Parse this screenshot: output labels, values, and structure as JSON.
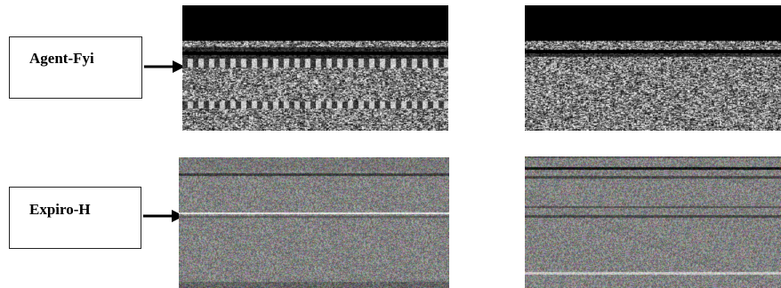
{
  "labels": {
    "top": "Agent-Fyi",
    "bottom": "Expiro-H"
  },
  "colors": {
    "box_border": "#222222",
    "arrow": "#000000",
    "band_black": "#000000",
    "noise_gray": "#888888"
  }
}
